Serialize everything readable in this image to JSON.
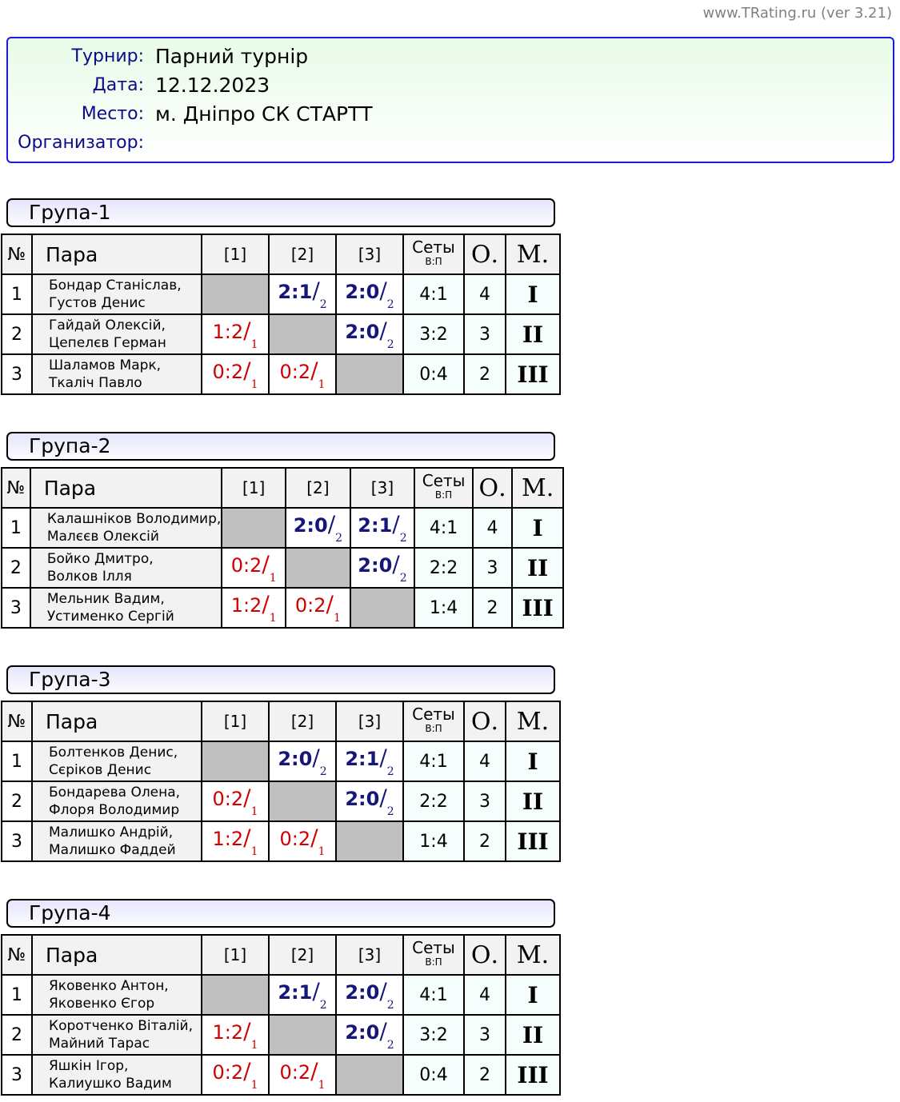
{
  "site": "www.TRating.ru (ver 3.21)",
  "info": [
    {
      "label": "Турнир:",
      "value": "Парний турнір"
    },
    {
      "label": "Дата:",
      "value": "12.12.2023"
    },
    {
      "label": "Место:",
      "value": "м. Дніпро СК СТАРТТ"
    },
    {
      "label": "Организатор:",
      "value": ""
    }
  ],
  "headers": {
    "num": "№",
    "pair": "Пара",
    "c1": "[1]",
    "c2": "[2]",
    "c3": "[3]",
    "sets": "Сеты",
    "sets_sub": "В:П",
    "points": "О.",
    "place": "М."
  },
  "colors": {
    "win": "#15157a",
    "lose": "#d00000",
    "empty": "#c0c0c0",
    "border_info": "#1a1ae0"
  },
  "groups": [
    {
      "title": "Група-1",
      "rows": [
        {
          "n": "1",
          "l1": "Бондар Станіслав,",
          "l2": "Густов Денис",
          "res": [
            null,
            {
              "s": "2:1",
              "p": "2",
              "w": true
            },
            {
              "s": "2:0",
              "p": "2",
              "w": true
            }
          ],
          "sets": "4:1",
          "pts": "4",
          "place": "I"
        },
        {
          "n": "2",
          "l1": "Гайдай Олексій,",
          "l2": "Цепелєв Герман",
          "res": [
            {
              "s": "1:2",
              "p": "1",
              "w": false
            },
            null,
            {
              "s": "2:0",
              "p": "2",
              "w": true
            }
          ],
          "sets": "3:2",
          "pts": "3",
          "place": "II"
        },
        {
          "n": "3",
          "l1": "Шаламов Марк,",
          "l2": "Ткаліч Павло",
          "res": [
            {
              "s": "0:2",
              "p": "1",
              "w": false
            },
            {
              "s": "0:2",
              "p": "1",
              "w": false
            },
            null
          ],
          "sets": "0:4",
          "pts": "2",
          "place": "III"
        }
      ]
    },
    {
      "title": "Група-2",
      "rows": [
        {
          "n": "1",
          "l1": "Калашніков Володимир,",
          "l2": "Малєєв Олексій",
          "res": [
            null,
            {
              "s": "2:0",
              "p": "2",
              "w": true
            },
            {
              "s": "2:1",
              "p": "2",
              "w": true
            }
          ],
          "sets": "4:1",
          "pts": "4",
          "place": "I"
        },
        {
          "n": "2",
          "l1": "Бойко Дмитро,",
          "l2": "Волков Ілля",
          "res": [
            {
              "s": "0:2",
              "p": "1",
              "w": false
            },
            null,
            {
              "s": "2:0",
              "p": "2",
              "w": true
            }
          ],
          "sets": "2:2",
          "pts": "3",
          "place": "II"
        },
        {
          "n": "3",
          "l1": "Мельник Вадим,",
          "l2": "Устименко Сергій",
          "res": [
            {
              "s": "1:2",
              "p": "1",
              "w": false
            },
            {
              "s": "0:2",
              "p": "1",
              "w": false
            },
            null
          ],
          "sets": "1:4",
          "pts": "2",
          "place": "III"
        }
      ]
    },
    {
      "title": "Група-3",
      "rows": [
        {
          "n": "1",
          "l1": "Болтенков Денис,",
          "l2": "Сєріков Денис",
          "res": [
            null,
            {
              "s": "2:0",
              "p": "2",
              "w": true
            },
            {
              "s": "2:1",
              "p": "2",
              "w": true
            }
          ],
          "sets": "4:1",
          "pts": "4",
          "place": "I"
        },
        {
          "n": "2",
          "l1": "Бондарева Олена,",
          "l2": "Флоря Володимир",
          "res": [
            {
              "s": "0:2",
              "p": "1",
              "w": false
            },
            null,
            {
              "s": "2:0",
              "p": "2",
              "w": true
            }
          ],
          "sets": "2:2",
          "pts": "3",
          "place": "II"
        },
        {
          "n": "3",
          "l1": "Малишко Андрій,",
          "l2": "Малишко Фаддей",
          "res": [
            {
              "s": "1:2",
              "p": "1",
              "w": false
            },
            {
              "s": "0:2",
              "p": "1",
              "w": false
            },
            null
          ],
          "sets": "1:4",
          "pts": "2",
          "place": "III"
        }
      ]
    },
    {
      "title": "Група-4",
      "rows": [
        {
          "n": "1",
          "l1": "Яковенко Антон,",
          "l2": "Яковенко Єгор",
          "res": [
            null,
            {
              "s": "2:1",
              "p": "2",
              "w": true
            },
            {
              "s": "2:0",
              "p": "2",
              "w": true
            }
          ],
          "sets": "4:1",
          "pts": "4",
          "place": "I"
        },
        {
          "n": "2",
          "l1": "Коротченко Віталій,",
          "l2": "Майний Тарас",
          "res": [
            {
              "s": "1:2",
              "p": "1",
              "w": false
            },
            null,
            {
              "s": "2:0",
              "p": "2",
              "w": true
            }
          ],
          "sets": "3:2",
          "pts": "3",
          "place": "II"
        },
        {
          "n": "3",
          "l1": "Яшкін Ігор,",
          "l2": "Калиушко Вадим",
          "res": [
            {
              "s": "0:2",
              "p": "1",
              "w": false
            },
            {
              "s": "0:2",
              "p": "1",
              "w": false
            },
            null
          ],
          "sets": "0:4",
          "pts": "2",
          "place": "III"
        }
      ]
    }
  ]
}
